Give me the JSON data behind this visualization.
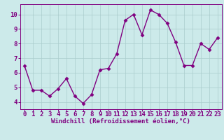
{
  "x": [
    0,
    1,
    2,
    3,
    4,
    5,
    6,
    7,
    8,
    9,
    10,
    11,
    12,
    13,
    14,
    15,
    16,
    17,
    18,
    19,
    20,
    21,
    22,
    23
  ],
  "y": [
    6.5,
    4.8,
    4.8,
    4.4,
    4.9,
    5.6,
    4.4,
    3.9,
    4.5,
    6.2,
    6.3,
    7.3,
    9.6,
    10.0,
    8.6,
    10.3,
    10.0,
    9.4,
    8.1,
    6.5,
    6.5,
    8.0,
    7.6,
    8.4
  ],
  "line_color": "#800080",
  "marker": "D",
  "marker_size": 2.5,
  "line_width": 1.0,
  "xlabel": "Windchill (Refroidissement éolien,°C)",
  "xlim": [
    -0.5,
    23.5
  ],
  "ylim": [
    3.5,
    10.7
  ],
  "yticks": [
    4,
    5,
    6,
    7,
    8,
    9,
    10
  ],
  "xticks": [
    0,
    1,
    2,
    3,
    4,
    5,
    6,
    7,
    8,
    9,
    10,
    11,
    12,
    13,
    14,
    15,
    16,
    17,
    18,
    19,
    20,
    21,
    22,
    23
  ],
  "bg_color": "#cceaea",
  "grid_color": "#aacccc",
  "line_bg_color": "#cceaea",
  "axis_label_color": "#800080",
  "tick_color": "#800080",
  "xlabel_fontsize": 6.5,
  "tick_fontsize": 6.5,
  "fig_width": 3.2,
  "fig_height": 2.0,
  "dpi": 100
}
